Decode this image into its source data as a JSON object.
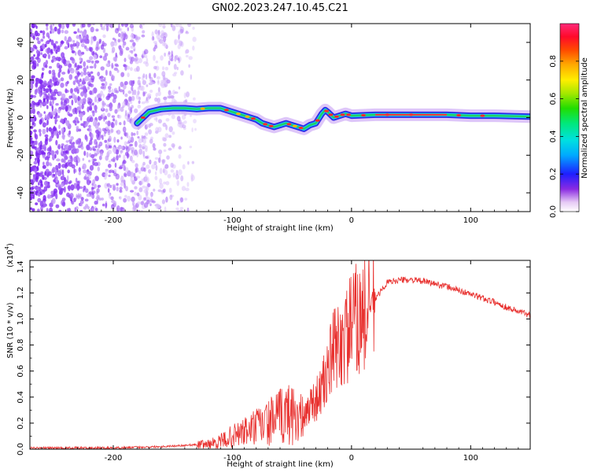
{
  "title": "GN02.2023.247.10.45.C21",
  "chart_data": [
    {
      "type": "heatmap",
      "title": "GN02.2023.247.10.45.C21",
      "xlabel": "Height of straight line (km)",
      "ylabel": "Frequency (Hz)",
      "xlim": [
        -270,
        150
      ],
      "ylim": [
        -50,
        50
      ],
      "xticks": [
        -200,
        -100,
        0,
        100
      ],
      "yticks": [
        -40,
        -20,
        0,
        20,
        40
      ],
      "colorbar": {
        "label": "Normalized spectral amplitude",
        "range": [
          0,
          1
        ],
        "ticks": [
          0.0,
          0.2,
          0.4,
          0.6,
          0.8
        ],
        "tick_labels": [
          "0.0",
          "0.2",
          "0.4",
          "0.6",
          "0.8"
        ]
      },
      "trace": {
        "x": [
          -180,
          -170,
          -160,
          -150,
          -140,
          -130,
          -120,
          -110,
          -100,
          -90,
          -85,
          -80,
          -75,
          -70,
          -65,
          -60,
          -55,
          -50,
          -45,
          -40,
          -35,
          -30,
          -27,
          -25,
          -22,
          -20,
          -15,
          -10,
          -5,
          0,
          20,
          40,
          60,
          80,
          100,
          120,
          150
        ],
        "y": [
          -3,
          3,
          4.5,
          5,
          5,
          4.5,
          5,
          5,
          3,
          1,
          0,
          -1,
          -3,
          -4,
          -5,
          -4,
          -3,
          -4,
          -5,
          -6,
          -4,
          -3,
          0,
          2,
          4,
          3,
          0,
          1,
          2,
          1,
          1.5,
          1.5,
          1.5,
          1.5,
          1,
          1,
          0.5
        ]
      },
      "noise_region": [
        -270,
        -130
      ]
    },
    {
      "type": "line",
      "xlabel": "Height of straight line (km)",
      "ylabel": "SNR (10 * v/v)",
      "scale_label": "(x10",
      "scale_exp": "4",
      "scale_close": ")",
      "xlim": [
        -270,
        150
      ],
      "ylim": [
        0,
        1.45
      ],
      "xticks": [
        -200,
        -100,
        0,
        100
      ],
      "yticks": [
        0.0,
        0.2,
        0.4,
        0.6,
        0.8,
        1.0,
        1.2,
        1.4
      ],
      "ytick_labels": [
        "0.0",
        "0.2",
        "0.4",
        "0.6",
        "0.8",
        "1.0",
        "1.2",
        "1.4"
      ],
      "series": [
        {
          "name": "SNR",
          "color": "#e8302e",
          "x": [
            -270,
            -200,
            -160,
            -140,
            -120,
            -110,
            -100,
            -90,
            -80,
            -70,
            -60,
            -50,
            -40,
            -35,
            -30,
            -25,
            -20,
            -15,
            -10,
            -5,
            0,
            5,
            10,
            15,
            20,
            25,
            30,
            40,
            50,
            60,
            70,
            80,
            90,
            100,
            110,
            120,
            130,
            140,
            150
          ],
          "y": [
            0.01,
            0.01,
            0.02,
            0.03,
            0.04,
            0.06,
            0.1,
            0.13,
            0.17,
            0.2,
            0.25,
            0.28,
            0.22,
            0.35,
            0.38,
            0.45,
            0.6,
            0.75,
            0.8,
            0.85,
            0.95,
            1.0,
            1.02,
            1.08,
            1.15,
            1.22,
            1.28,
            1.3,
            1.3,
            1.29,
            1.27,
            1.25,
            1.22,
            1.19,
            1.16,
            1.13,
            1.09,
            1.06,
            1.03
          ]
        }
      ]
    }
  ]
}
